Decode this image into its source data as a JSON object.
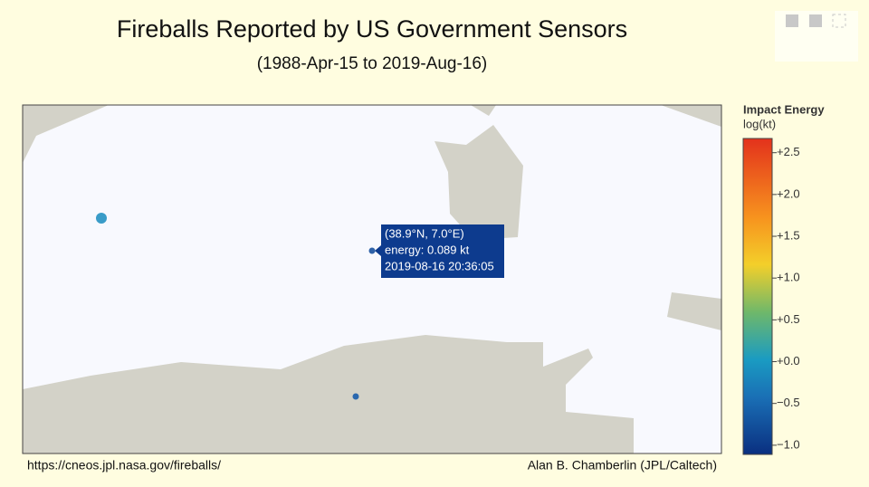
{
  "header": {
    "title": "Fireballs Reported by US Government Sensors",
    "subtitle": "(1988-Apr-15 to 2019-Aug-16)"
  },
  "colorbar": {
    "title": "Impact Energy",
    "unit": "log(kt)",
    "range": [
      -1.11,
      2.67
    ],
    "colorscale": [
      [
        0,
        "#0a2f80"
      ],
      [
        0.18,
        "#1a6fb5"
      ],
      [
        0.3,
        "#1a9bc2"
      ],
      [
        0.45,
        "#6fb86a"
      ],
      [
        0.6,
        "#f3cf2a"
      ],
      [
        0.75,
        "#f7931e"
      ],
      [
        1,
        "#e3321c"
      ]
    ],
    "ticks": [
      {
        "value": 2.5,
        "label": "+2.5"
      },
      {
        "value": 2,
        "label": "+2.0"
      },
      {
        "value": 1.5,
        "label": "+1.5"
      },
      {
        "value": 1,
        "label": "+1.0"
      },
      {
        "value": 0.5,
        "label": "+0.5"
      },
      {
        "value": 0,
        "label": "+0.0"
      },
      {
        "value": -0.5,
        "label": "−0.5"
      },
      {
        "value": -1,
        "label": "−1.0"
      }
    ]
  },
  "points": [
    {
      "log_energy": -0.3,
      "color": "#3a9cc8"
    },
    {
      "log_energy": -1.05,
      "color": "#2f62a8"
    },
    {
      "log_energy": -0.8,
      "color": "#2a68ae"
    }
  ],
  "tooltip": {
    "lines": [
      "(38.9°N, 7.0°E)",
      "energy: 0.089 kt",
      "2019-08-16 20:36:05"
    ]
  },
  "footer": {
    "source": "https://cneos.jpl.nasa.gov/fireballs/",
    "credit": "Alan B. Chamberlin (JPL/Caltech)"
  }
}
